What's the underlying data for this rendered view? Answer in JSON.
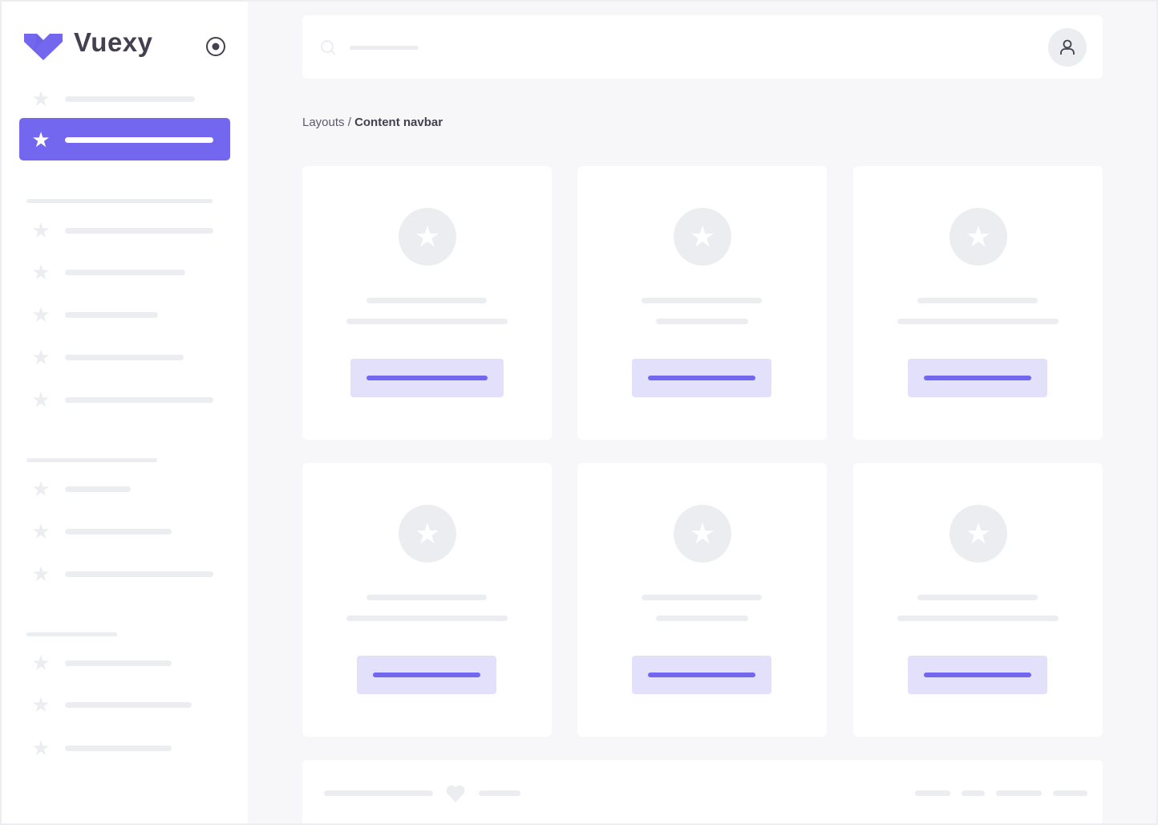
{
  "brand": {
    "name": "Vuexy",
    "color": "#7367f0"
  },
  "breadcrumb": {
    "parent": "Layouts",
    "separator": " / ",
    "current": "Content navbar"
  },
  "icons": {
    "search": "search-icon",
    "user": "user-icon",
    "toggle": "radio-circle-icon",
    "nav": "star-icon",
    "footer": "heart-icon"
  },
  "colors": {
    "accent": "#7367f0",
    "placeholder": "#ecedf1",
    "background": "#f7f7f9"
  }
}
